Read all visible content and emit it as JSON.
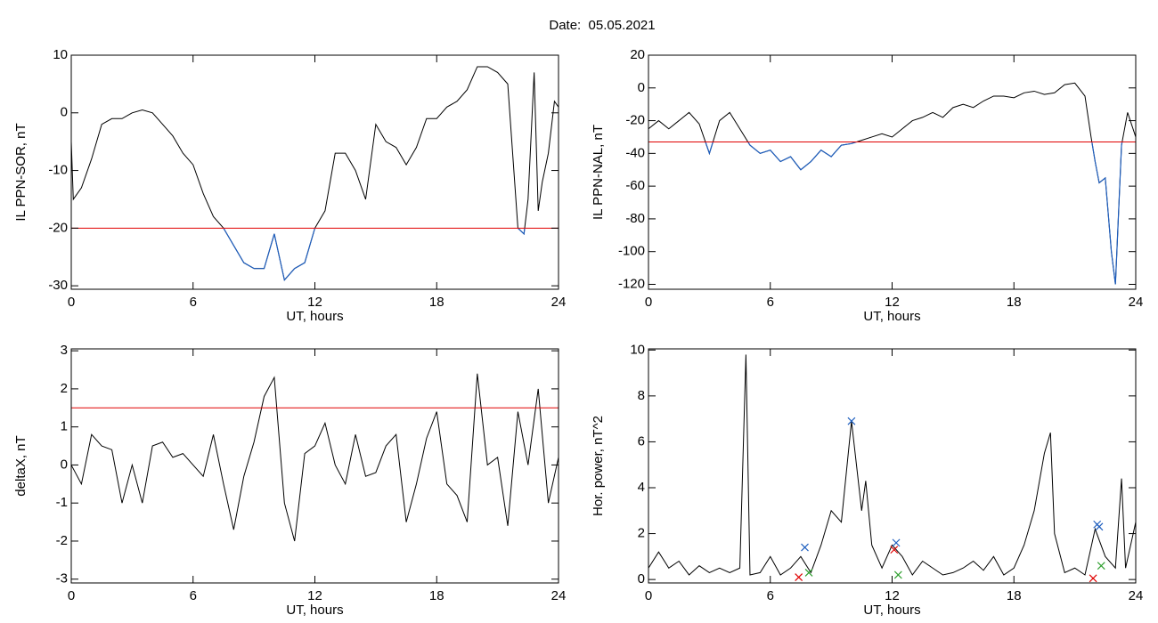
{
  "title": "Date:  05.05.2021",
  "chart_data": [
    {
      "type": "line",
      "ylabel": "IL PPN-SOR, nT",
      "xlabel": "UT, hours",
      "xlim": [
        0,
        24
      ],
      "xticks": [
        0,
        6,
        12,
        18,
        24
      ],
      "ylim": [
        -30.6,
        10
      ],
      "yticks": [
        -30,
        -20,
        -10,
        0,
        10
      ],
      "threshold": -20,
      "threshold_color": "#e00000",
      "color": "#000000",
      "below_color": "#1f5fbf",
      "x": [
        0,
        0.1,
        0.5,
        1,
        1.5,
        2,
        2.5,
        3,
        3.5,
        4,
        4.5,
        5,
        5.5,
        6,
        6.5,
        7,
        7.5,
        8,
        8.5,
        9,
        9.5,
        10,
        10.5,
        11,
        11.5,
        12,
        12.5,
        13,
        13.5,
        14,
        14.5,
        15,
        15.5,
        16,
        16.5,
        17,
        17.5,
        18,
        18.5,
        19,
        19.5,
        20,
        20.5,
        21,
        21.5,
        22,
        22.3,
        22.5,
        22.8,
        23,
        23.2,
        23.5,
        23.8,
        24
      ],
      "values": [
        -5,
        -15,
        -13,
        -8,
        -2,
        -1,
        -1,
        0,
        0.5,
        0,
        -2,
        -4,
        -7,
        -9,
        -14,
        -18,
        -20,
        -23,
        -26,
        -27,
        -27,
        -21,
        -29,
        -27,
        -26,
        -20,
        -17,
        -7,
        -7,
        -10,
        -15,
        -2,
        -5,
        -6,
        -9,
        -6,
        -1,
        -1,
        1,
        2,
        4,
        8,
        8,
        7,
        5,
        -20,
        -21,
        -15,
        7,
        -17,
        -12,
        -7,
        2,
        1
      ]
    },
    {
      "type": "line",
      "ylabel": "IL PPN-NAL, nT",
      "xlabel": "UT, hours",
      "xlim": [
        0,
        24
      ],
      "xticks": [
        0,
        6,
        12,
        18,
        24
      ],
      "ylim": [
        -123,
        20
      ],
      "yticks": [
        -120,
        -100,
        -80,
        -60,
        -40,
        -20,
        0,
        20
      ],
      "threshold": -33,
      "threshold_color": "#e00000",
      "color": "#000000",
      "below_color": "#1f5fbf",
      "x": [
        0,
        0.5,
        1,
        1.5,
        2,
        2.5,
        3,
        3.5,
        4,
        4.5,
        5,
        5.5,
        6,
        6.5,
        7,
        7.5,
        8,
        8.5,
        9,
        9.5,
        10,
        10.5,
        11,
        11.5,
        12,
        12.5,
        13,
        13.5,
        14,
        14.5,
        15,
        15.5,
        16,
        16.5,
        17,
        17.5,
        18,
        18.5,
        19,
        19.5,
        20,
        20.5,
        21,
        21.5,
        21.8,
        22,
        22.2,
        22.5,
        22.8,
        23,
        23.3,
        23.6,
        24
      ],
      "values": [
        -25,
        -20,
        -25,
        -20,
        -15,
        -22,
        -40,
        -20,
        -15,
        -25,
        -35,
        -40,
        -38,
        -45,
        -42,
        -50,
        -45,
        -38,
        -42,
        -35,
        -34,
        -32,
        -30,
        -28,
        -30,
        -25,
        -20,
        -18,
        -15,
        -18,
        -12,
        -10,
        -12,
        -8,
        -5,
        -5,
        -6,
        -3,
        -2,
        -4,
        -3,
        2,
        3,
        -5,
        -30,
        -45,
        -58,
        -55,
        -100,
        -120,
        -35,
        -15,
        -30
      ]
    },
    {
      "type": "line",
      "ylabel": "deltaX, nT",
      "xlabel": "UT, hours",
      "xlim": [
        0,
        24
      ],
      "xticks": [
        0,
        6,
        12,
        18,
        24
      ],
      "ylim": [
        -3.1,
        3.05
      ],
      "yticks": [
        -3,
        -2,
        -1,
        0,
        1,
        2,
        3
      ],
      "threshold": 1.5,
      "threshold_color": "#e00000",
      "color": "#000000",
      "x": [
        0,
        0.5,
        1,
        1.5,
        2,
        2.5,
        3,
        3.5,
        4,
        4.5,
        5,
        5.5,
        6,
        6.5,
        7,
        7.5,
        8,
        8.5,
        9,
        9.5,
        10,
        10.5,
        11,
        11.5,
        12,
        12.5,
        13,
        13.5,
        14,
        14.5,
        15,
        15.5,
        16,
        16.5,
        17,
        17.5,
        18,
        18.5,
        19,
        19.5,
        20,
        20.5,
        21,
        21.5,
        22,
        22.5,
        23,
        23.5,
        24
      ],
      "values": [
        0,
        -0.5,
        0.8,
        0.5,
        0.4,
        -1,
        0,
        -1,
        0.5,
        0.6,
        0.2,
        0.3,
        0,
        -0.3,
        0.8,
        -0.5,
        -1.7,
        -0.3,
        0.6,
        1.8,
        2.3,
        -1,
        -2,
        0.3,
        0.5,
        1.1,
        0,
        -0.5,
        0.8,
        -0.3,
        -0.2,
        0.5,
        0.8,
        -1.5,
        -0.5,
        0.7,
        1.4,
        -0.5,
        -0.8,
        -1.5,
        2.4,
        0,
        0.2,
        -1.6,
        1.4,
        0,
        2,
        -1,
        0.2
      ]
    },
    {
      "type": "line",
      "ylabel": "Hor. power, nT^2",
      "xlabel": "UT, hours",
      "xlim": [
        0,
        24
      ],
      "xticks": [
        0,
        6,
        12,
        18,
        24
      ],
      "ylim": [
        -0.15,
        10.05
      ],
      "yticks": [
        0,
        2,
        4,
        6,
        8,
        10
      ],
      "color": "#000000",
      "x": [
        0,
        0.5,
        1,
        1.5,
        2,
        2.5,
        3,
        3.5,
        4,
        4.5,
        4.8,
        5,
        5.5,
        6,
        6.5,
        7,
        7.5,
        8,
        8.5,
        9,
        9.5,
        10,
        10.5,
        10.7,
        11,
        11.5,
        12,
        12.5,
        13,
        13.5,
        14,
        14.5,
        15,
        15.5,
        16,
        16.5,
        17,
        17.5,
        18,
        18.5,
        19,
        19.5,
        19.8,
        20,
        20.5,
        21,
        21.5,
        22,
        22.5,
        23,
        23.3,
        23.5,
        24
      ],
      "values": [
        0.5,
        1.2,
        0.5,
        0.8,
        0.2,
        0.6,
        0.3,
        0.5,
        0.3,
        0.5,
        9.8,
        0.2,
        0.3,
        1,
        0.2,
        0.5,
        1,
        0.3,
        1.5,
        3,
        2.5,
        6.9,
        3,
        4.3,
        1.5,
        0.5,
        1.5,
        1,
        0.2,
        0.8,
        0.5,
        0.2,
        0.3,
        0.5,
        0.8,
        0.4,
        1,
        0.2,
        0.5,
        1.5,
        3,
        5.5,
        6.4,
        2,
        0.3,
        0.5,
        0.2,
        2.2,
        1,
        0.5,
        4.4,
        0.5,
        2.5
      ],
      "markers": [
        {
          "color": "#1f5fbf",
          "x": [
            7.7,
            10,
            12.2,
            22.1,
            22.2
          ],
          "values": [
            1.4,
            6.9,
            1.6,
            2.4,
            2.3
          ]
        },
        {
          "color": "#e00000",
          "x": [
            7.4,
            12.1,
            21.9
          ],
          "values": [
            0.1,
            1.3,
            0.05
          ]
        },
        {
          "color": "#30a030",
          "x": [
            7.9,
            12.3,
            22.3
          ],
          "values": [
            0.3,
            0.2,
            0.6
          ]
        }
      ]
    }
  ]
}
